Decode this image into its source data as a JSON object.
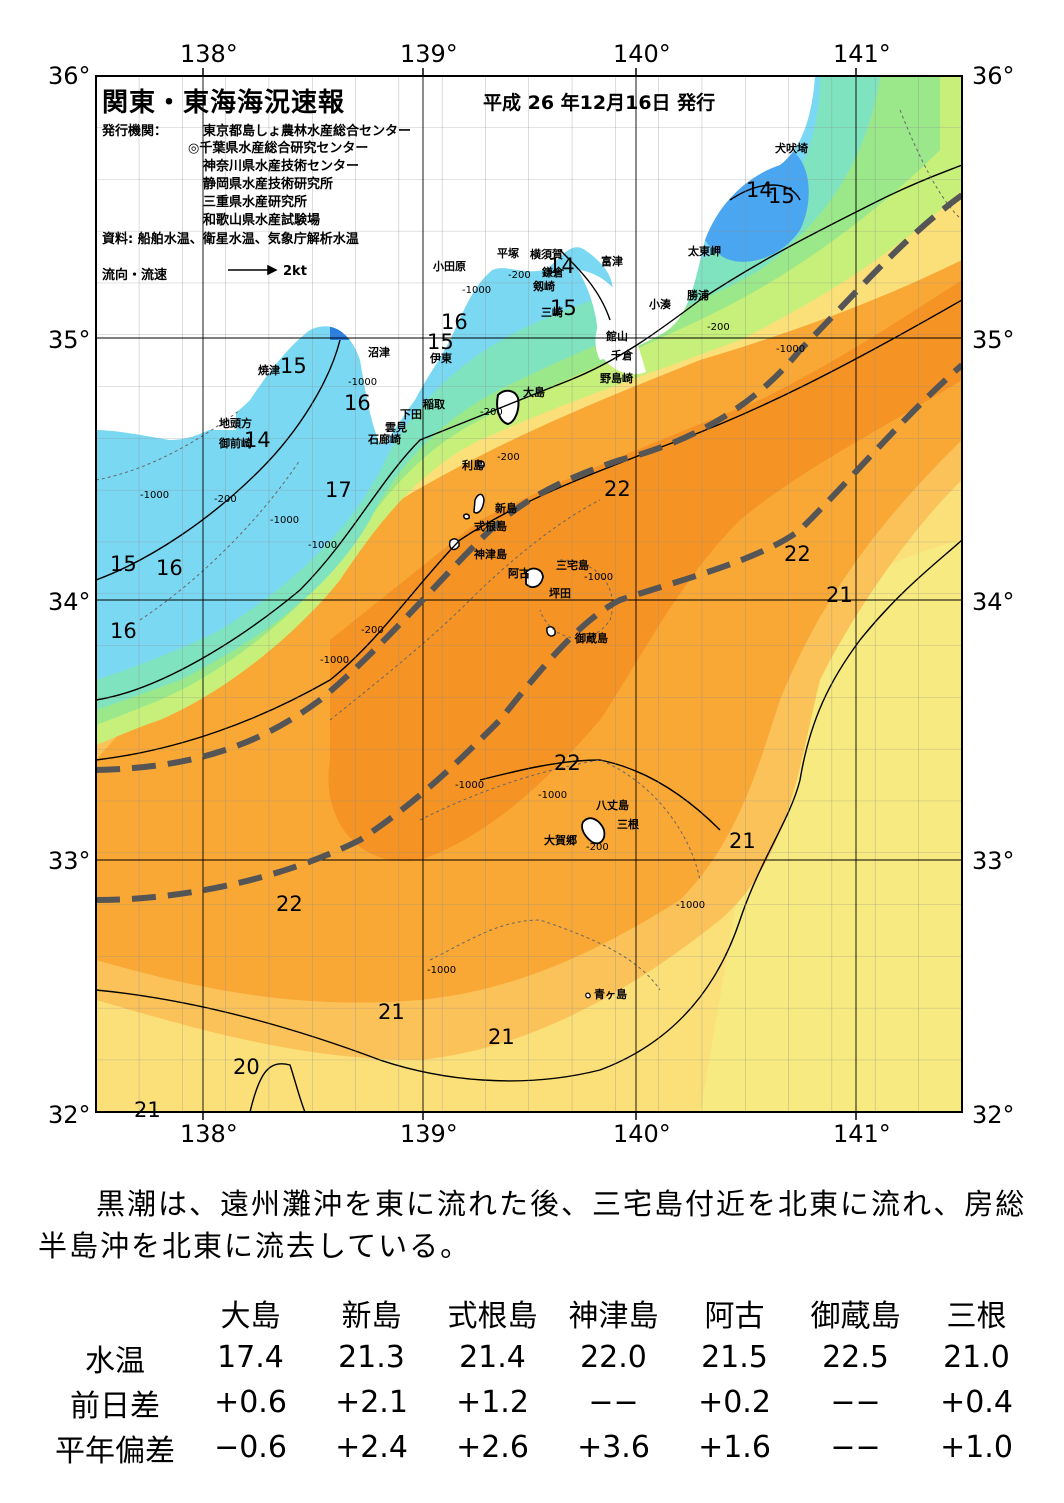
{
  "map": {
    "title": "関東・東海海況速報",
    "issue_date": "平成 26 年12月16日 発行",
    "agencies_label": "発行機関：",
    "agencies": [
      "東京都島しょ農林水産総合センター",
      "◎千葉県水産総合研究センター",
      "神奈川県水産技術センター",
      "静岡県水産技術研究所",
      "三重県水産研究所",
      "和歌山県水産試験場"
    ],
    "source": "資料: 船舶水温、衛星水温、気象庁解析水温",
    "legend_label": "流向・流速",
    "legend_speed": "2kt",
    "lon_ticks": [
      "138°",
      "139°",
      "140°",
      "141°"
    ],
    "lat_ticks": [
      "36°",
      "35°",
      "34°",
      "33°",
      "32°"
    ],
    "place_names": [
      "犬吠埼",
      "太東岬",
      "勝浦",
      "小湊",
      "富津",
      "横須賀",
      "平塚",
      "小田原",
      "鎌倉",
      "館山",
      "千倉",
      "野島崎",
      "三崎",
      "剱崎",
      "沼津",
      "伊東",
      "焼津",
      "稲取",
      "下田",
      "雲見",
      "石廊崎",
      "地頭方",
      "御前崎",
      "大島",
      "利島",
      "新島",
      "式根島",
      "神津島",
      "三宅島",
      "阿古",
      "坪田",
      "御蔵島",
      "八丈島",
      "三根",
      "大賀郷",
      "青ヶ島"
    ],
    "isotherm_labels": [
      "14",
      "15",
      "14",
      "15",
      "16",
      "15",
      "15",
      "16",
      "14",
      "17",
      "15",
      "16",
      "16",
      "22",
      "22",
      "21",
      "22",
      "21",
      "22",
      "21",
      "21",
      "20",
      "21"
    ],
    "depth_labels": [
      "-1000",
      "-200",
      "-200",
      "-1000",
      "-1000",
      "-200",
      "-1000",
      "-200",
      "-1000",
      "-1000",
      "-200",
      "-1000",
      "-1000",
      "-200",
      "-1000",
      "-1000",
      "-1000",
      "-1000",
      "-200"
    ],
    "colors": {
      "land": "#ffffff",
      "lt13": "#2a7ee0",
      "t14": "#4aa6f0",
      "t15": "#6cc6f7",
      "t16": "#7ad8f3",
      "t17": "#7fe3c0",
      "t18": "#9be88a",
      "t19": "#c7f07a",
      "t20": "#e8f57a",
      "t21": "#fbe07a",
      "t21_5": "#fbc25a",
      "t22": "#f9a836",
      "t22_plus": "#f59324",
      "kuroshio_axis": "#555555"
    }
  },
  "summary": "黒潮は、遠州灘沖を東に流れた後、三宅島付近を北東に流れ、房総半島沖を北東に流去している。",
  "table": {
    "columns": [
      "大島",
      "新島",
      "式根島",
      "神津島",
      "阿古",
      "御蔵島",
      "三根"
    ],
    "rows": [
      {
        "label": "水温",
        "values": [
          "17.4",
          "21.3",
          "21.4",
          "22.0",
          "21.5",
          "22.5",
          "21.0"
        ]
      },
      {
        "label": "前日差",
        "values": [
          "+0.6",
          "+2.1",
          "+1.2",
          "−−",
          "+0.2",
          "−−",
          "+0.4"
        ]
      },
      {
        "label": "平年偏差",
        "values": [
          "−0.6",
          "+2.4",
          "+2.6",
          "+3.6",
          "+1.6",
          "−−",
          "+1.0"
        ]
      }
    ]
  }
}
